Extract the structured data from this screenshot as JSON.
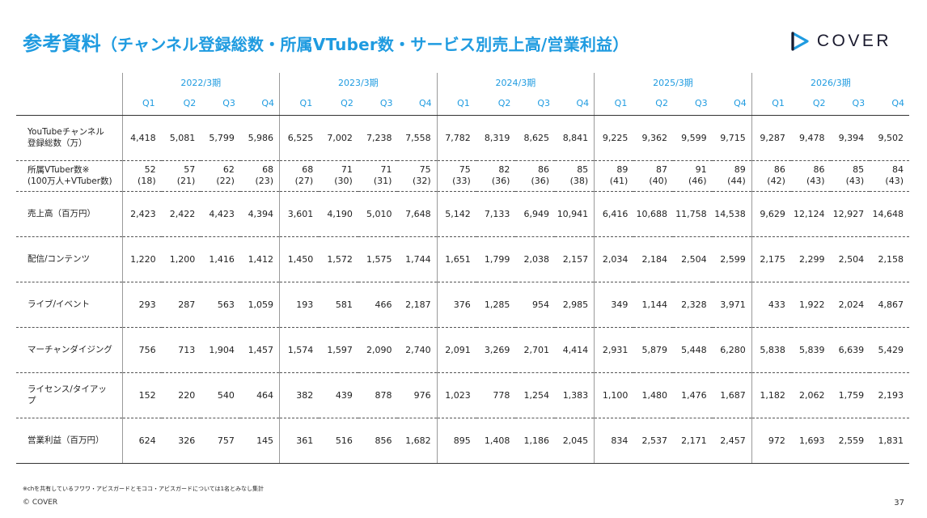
{
  "title": {
    "main": "参考資料",
    "sub": "（チャンネル登録総数・所属VTuber数・サービス別売上高/営業利益）"
  },
  "logo": {
    "text": "COVER",
    "icon": "cover-play-icon",
    "color": "#1f9be0"
  },
  "table": {
    "years": [
      "2022/3期",
      "2023/3期",
      "2024/3期",
      "2025/3期",
      "2026/3期"
    ],
    "quarters": [
      "Q1",
      "Q2",
      "Q3",
      "Q4"
    ],
    "rows": [
      {
        "label1": "YouTubeチャンネル",
        "label2": "登録総数（万）",
        "values": [
          "4,418",
          "5,081",
          "5,799",
          "5,986",
          "6,525",
          "7,002",
          "7,238",
          "7,558",
          "7,782",
          "8,319",
          "8,625",
          "8,841",
          "9,225",
          "9,362",
          "9,599",
          "9,715",
          "9,287",
          "9,478",
          "9,394",
          "9,502"
        ]
      },
      {
        "label1": "所属VTuber数※",
        "label2": "(100万人+VTuber数)",
        "values": [
          "52",
          "57",
          "62",
          "68",
          "68",
          "71",
          "71",
          "75",
          "75",
          "82",
          "86",
          "85",
          "89",
          "87",
          "91",
          "89",
          "86",
          "86",
          "85",
          "84"
        ],
        "subvalues": [
          "(18)",
          "(21)",
          "(22)",
          "(23)",
          "(27)",
          "(30)",
          "(31)",
          "(32)",
          "(33)",
          "(36)",
          "(36)",
          "(38)",
          "(41)",
          "(40)",
          "(46)",
          "(44)",
          "(42)",
          "(43)",
          "(43)",
          "(43)"
        ]
      },
      {
        "label1": "売上高（百万円）",
        "label2": "",
        "values": [
          "2,423",
          "2,422",
          "4,423",
          "4,394",
          "3,601",
          "4,190",
          "5,010",
          "7,648",
          "5,142",
          "7,133",
          "6,949",
          "10,941",
          "6,416",
          "10,688",
          "11,758",
          "14,538",
          "9,629",
          "12,124",
          "12,927",
          "14,648"
        ]
      },
      {
        "label1": "配信/コンテンツ",
        "label2": "",
        "values": [
          "1,220",
          "1,200",
          "1,416",
          "1,412",
          "1,450",
          "1,572",
          "1,575",
          "1,744",
          "1,651",
          "1,799",
          "2,038",
          "2,157",
          "2,034",
          "2,184",
          "2,504",
          "2,599",
          "2,175",
          "2,299",
          "2,504",
          "2,158"
        ]
      },
      {
        "label1": "ライブ/イベント",
        "label2": "",
        "values": [
          "293",
          "287",
          "563",
          "1,059",
          "193",
          "581",
          "466",
          "2,187",
          "376",
          "1,285",
          "954",
          "2,985",
          "349",
          "1,144",
          "2,328",
          "3,971",
          "433",
          "1,922",
          "2,024",
          "4,867"
        ]
      },
      {
        "label1": "マーチャンダイジング",
        "label2": "",
        "values": [
          "756",
          "713",
          "1,904",
          "1,457",
          "1,574",
          "1,597",
          "2,090",
          "2,740",
          "2,091",
          "3,269",
          "2,701",
          "4,414",
          "2,931",
          "5,879",
          "5,448",
          "6,280",
          "5,838",
          "5,839",
          "6,639",
          "5,429"
        ]
      },
      {
        "label1": "ライセンス/タイアッ",
        "label2": "プ",
        "values": [
          "152",
          "220",
          "540",
          "464",
          "382",
          "439",
          "878",
          "976",
          "1,023",
          "778",
          "1,254",
          "1,383",
          "1,100",
          "1,480",
          "1,476",
          "1,687",
          "1,182",
          "2,062",
          "1,759",
          "2,193"
        ]
      },
      {
        "label1": "営業利益（百万円）",
        "label2": "",
        "values": [
          "624",
          "326",
          "757",
          "145",
          "361",
          "516",
          "856",
          "1,682",
          "895",
          "1,408",
          "1,186",
          "2,045",
          "834",
          "2,537",
          "2,171",
          "2,457",
          "972",
          "1,693",
          "2,559",
          "1,831"
        ]
      }
    ]
  },
  "footnote": "※chを共有しているフワワ・アビスガードとモココ・アビスガードについては1名とみなし集計",
  "copyright": "© COVER",
  "page_number": "37"
}
